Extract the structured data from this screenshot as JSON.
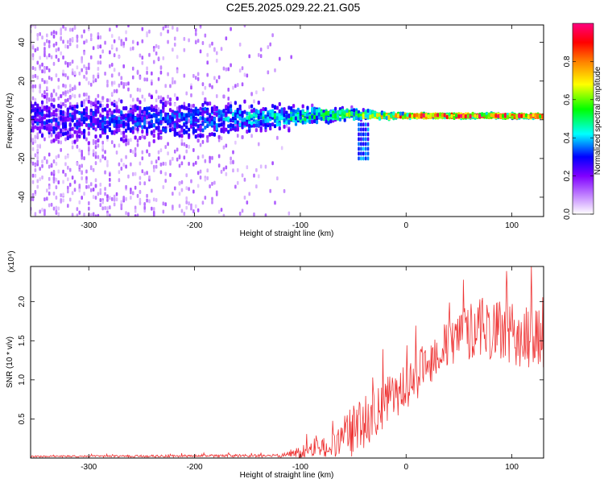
{
  "chart_data": [
    {
      "type": "heatmap",
      "title": "C2E5.2025.029.22.21.G05",
      "xlabel": "Height of straight line (km)",
      "ylabel": "Frequency (Hz)",
      "xlim": [
        -355,
        130
      ],
      "ylim": [
        -50,
        49
      ],
      "x_ticks": [
        -300,
        -200,
        -100,
        0,
        100
      ],
      "y_ticks": [
        -40,
        -20,
        0,
        20,
        40
      ],
      "colorbar": {
        "label": "Normalized spectral amplitude",
        "range": [
          0,
          1
        ],
        "ticks": [
          "0.0",
          "0.2",
          "0.4",
          "0.6",
          "0.8"
        ],
        "colors": [
          "#ffffff",
          "#c080ff",
          "#8000ff",
          "#0000ff",
          "#00ffff",
          "#00ff00",
          "#ffff00",
          "#ff8000",
          "#ff0000",
          "#ff0080"
        ]
      },
      "ridge": [
        {
          "x": -355,
          "center": 0,
          "spread": 12,
          "amp": 0.3
        },
        {
          "x": -200,
          "center": 0,
          "spread": 10,
          "amp": 0.35
        },
        {
          "x": -130,
          "center": 1,
          "spread": 6,
          "amp": 0.45
        },
        {
          "x": -60,
          "center": 3,
          "spread": 3,
          "amp": 0.55
        },
        {
          "x": -20,
          "center": 2,
          "spread": 1.5,
          "amp": 0.8
        },
        {
          "x": 20,
          "center": 2,
          "spread": 1,
          "amp": 0.95
        },
        {
          "x": 130,
          "center": 2,
          "spread": 1,
          "amp": 0.95
        }
      ]
    },
    {
      "type": "line",
      "xlabel": "Height of straight line (km)",
      "ylabel": "SNR (10 * v/v)",
      "yscale_label": "(x10⁴)",
      "xlim": [
        -355,
        130
      ],
      "ylim": [
        0,
        2.45
      ],
      "x_ticks": [
        -300,
        -200,
        -100,
        0,
        100
      ],
      "y_ticks": [
        0.5,
        1.0,
        1.5,
        2.0
      ],
      "color": "#ee3333",
      "envelope": [
        {
          "x": -355,
          "base": 0.02,
          "noise": 0.01
        },
        {
          "x": -120,
          "base": 0.03,
          "noise": 0.02
        },
        {
          "x": -100,
          "base": 0.08,
          "noise": 0.08
        },
        {
          "x": -70,
          "base": 0.15,
          "noise": 0.15
        },
        {
          "x": -50,
          "base": 0.35,
          "noise": 0.35
        },
        {
          "x": -30,
          "base": 0.6,
          "noise": 0.35
        },
        {
          "x": -10,
          "base": 0.8,
          "noise": 0.3
        },
        {
          "x": 10,
          "base": 1.05,
          "noise": 0.3
        },
        {
          "x": 30,
          "base": 1.35,
          "noise": 0.3
        },
        {
          "x": 50,
          "base": 1.55,
          "noise": 0.35
        },
        {
          "x": 70,
          "base": 1.7,
          "noise": 0.4
        },
        {
          "x": 90,
          "base": 1.6,
          "noise": 0.4
        },
        {
          "x": 110,
          "base": 1.55,
          "noise": 0.4
        },
        {
          "x": 130,
          "base": 1.5,
          "noise": 0.4
        }
      ]
    }
  ]
}
